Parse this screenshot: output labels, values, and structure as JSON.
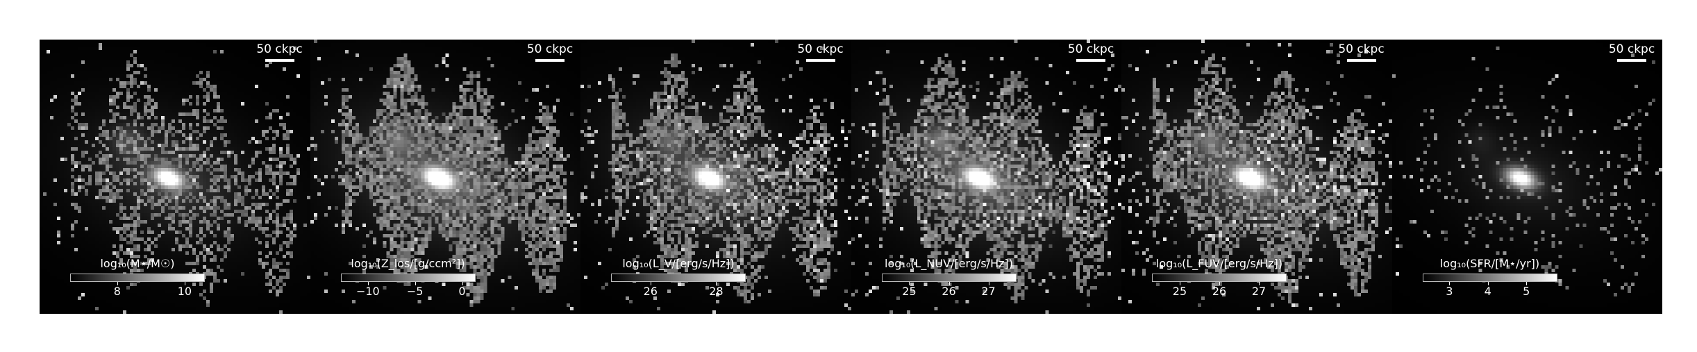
{
  "scale_bar_label": "50 ckpc",
  "panels": [
    {
      "colorbar_label": "log₁₀(M⋆/M☉)",
      "ticks": [
        "8",
        "10"
      ],
      "range": [
        6.6,
        10.6
      ],
      "tick_values": [
        8,
        10
      ],
      "image": {
        "core": 1.0,
        "halo": 0.55,
        "fill": 0.55,
        "noise": 0.35,
        "extra_blob": 0.45,
        "streak": 0.0
      }
    },
    {
      "colorbar_label": "log₁₀(Z_los/[g/ccm²])",
      "ticks": [
        "−10",
        "−5",
        "0"
      ],
      "range": [
        -12.9,
        1.4
      ],
      "tick_values": [
        -10,
        -5,
        0
      ],
      "image": {
        "core": 1.0,
        "halo": 0.9,
        "fill": 1.0,
        "noise": 0.55,
        "extra_blob": 0.7,
        "streak": 0.0
      }
    },
    {
      "colorbar_label": "log₁₀(L_V/[erg/s/Hz])",
      "ticks": [
        "26",
        "28"
      ],
      "range": [
        24.8,
        28.9
      ],
      "tick_values": [
        26,
        28
      ],
      "image": {
        "core": 1.0,
        "halo": 0.75,
        "fill": 0.8,
        "noise": 0.6,
        "extra_blob": 0.6,
        "streak": 0.6
      }
    },
    {
      "colorbar_label": "log₁₀(L_NUV/[erg/s/Hz])",
      "ticks": [
        "25",
        "26",
        "27"
      ],
      "range": [
        24.3,
        27.7
      ],
      "tick_values": [
        25,
        26,
        27
      ],
      "image": {
        "core": 1.0,
        "halo": 0.85,
        "fill": 0.85,
        "noise": 0.8,
        "extra_blob": 0.7,
        "streak": 0.8
      }
    },
    {
      "colorbar_label": "log₁₀(L_FUV/[erg/s/Hz])",
      "ticks": [
        "25",
        "26",
        "27"
      ],
      "range": [
        24.3,
        27.7
      ],
      "tick_values": [
        25,
        26,
        27
      ],
      "image": {
        "core": 1.0,
        "halo": 0.85,
        "fill": 0.85,
        "noise": 0.85,
        "extra_blob": 0.7,
        "streak": 0.8
      }
    },
    {
      "colorbar_label": "log₁₀(SFR/[M⋆/yr])",
      "ticks": [
        "3",
        "4",
        "5"
      ],
      "range": [
        2.3,
        5.8
      ],
      "tick_values": [
        3,
        4,
        5
      ],
      "image": {
        "core": 1.0,
        "halo": 0.3,
        "fill": 0.12,
        "noise": 0.15,
        "extra_blob": 0.15,
        "streak": 0.0
      }
    }
  ]
}
